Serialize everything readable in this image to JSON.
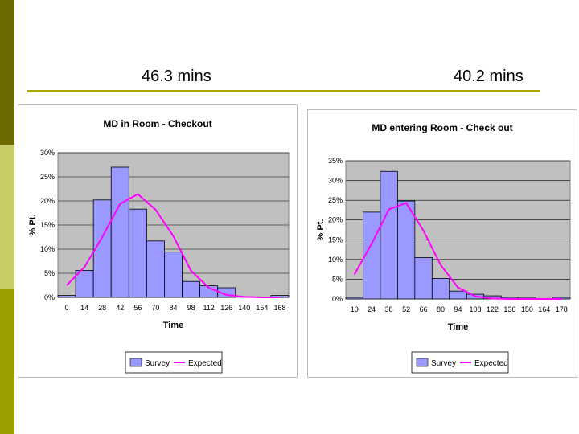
{
  "headings": [
    "46.3 mins",
    "40.2 mins"
  ],
  "chart_data": [
    {
      "type": "bar",
      "title": "MD in Room - Checkout",
      "xlabel": "Time",
      "ylabel": "% Pt.",
      "categories": [
        "0",
        "14",
        "28",
        "42",
        "56",
        "70",
        "84",
        "98",
        "112",
        "126",
        "140",
        "154",
        "168"
      ],
      "ylim": [
        0,
        30
      ],
      "yticks": [
        "0%",
        "5%",
        "10%",
        "15%",
        "20%",
        "25%",
        "30%"
      ],
      "series": [
        {
          "name": "Survey",
          "kind": "bar",
          "color": "#9999ff",
          "values": [
            0.4,
            5.6,
            20.2,
            27,
            18.3,
            11.7,
            9.4,
            3.3,
            2.4,
            2.0,
            0.0,
            0.0,
            0.4
          ]
        },
        {
          "name": "Expected",
          "kind": "line",
          "color": "#ff00ff",
          "values": [
            2.5,
            6.3,
            12.5,
            19.4,
            21.4,
            18.2,
            12.7,
            5.5,
            2.0,
            0.5,
            0.1,
            0.0,
            0.0
          ]
        }
      ],
      "grid": true,
      "legend": "bottom"
    },
    {
      "type": "bar",
      "title": "MD entering Room - Check out",
      "xlabel": "Time",
      "ylabel": "% Pt.",
      "categories": [
        "10",
        "24",
        "38",
        "52",
        "66",
        "80",
        "94",
        "108",
        "122",
        "136",
        "150",
        "164",
        "178"
      ],
      "ylim": [
        0,
        35
      ],
      "yticks": [
        "0%",
        "5%",
        "10%",
        "15%",
        "20%",
        "25%",
        "30%",
        "35%"
      ],
      "series": [
        {
          "name": "Survey",
          "kind": "bar",
          "color": "#9999ff",
          "values": [
            0.4,
            22,
            32.3,
            24.8,
            10.5,
            5.2,
            2.0,
            1.2,
            0.8,
            0.4,
            0.4,
            0.0,
            0.4
          ]
        },
        {
          "name": "Expected",
          "kind": "line",
          "color": "#ff00ff",
          "values": [
            6.2,
            14.0,
            22.7,
            24.3,
            17.3,
            8.6,
            2.9,
            0.7,
            0.1,
            0.0,
            0.0,
            0.0,
            0.0
          ]
        }
      ],
      "grid": true,
      "legend": "bottom"
    }
  ]
}
